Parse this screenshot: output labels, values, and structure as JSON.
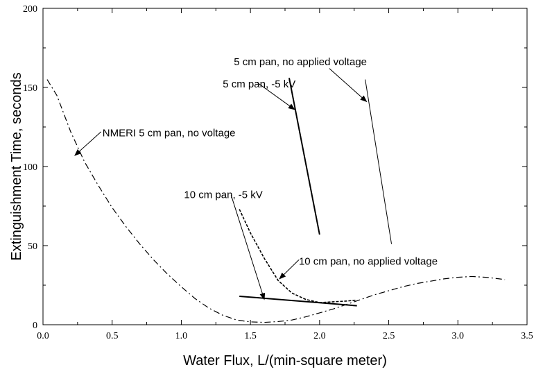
{
  "chart_data": {
    "type": "line",
    "title": "",
    "xlabel": "Water Flux,  L/(min-square meter)",
    "ylabel": "Extinguishment Time, seconds",
    "xlim": [
      0,
      3.5
    ],
    "ylim": [
      0,
      200
    ],
    "x_ticks": [
      "0.0",
      "0.5",
      "1.0",
      "1.5",
      "2.0",
      "2.5",
      "3.0",
      "3.5"
    ],
    "y_ticks": [
      "0",
      "50",
      "100",
      "150",
      "200"
    ],
    "grid": false,
    "series": [
      {
        "style": "dashdot",
        "color": "#000000",
        "x": [
          0.03,
          0.1,
          0.2,
          0.3,
          0.4,
          0.5,
          0.6,
          0.7,
          0.8,
          0.9,
          1.0,
          1.1,
          1.2,
          1.3,
          1.4,
          1.5,
          1.6,
          1.7,
          1.8,
          1.9,
          2.0,
          2.1,
          2.2,
          2.3,
          2.4,
          2.5,
          2.6,
          2.7,
          2.8,
          2.9,
          3.0,
          3.1,
          3.2,
          3.3,
          3.34
        ],
        "y": [
          155,
          145,
          122,
          103,
          88,
          74,
          62,
          51,
          41,
          32,
          24,
          16.5,
          10.5,
          6,
          3,
          1.8,
          1.5,
          2,
          3,
          5,
          7.5,
          10,
          13,
          16,
          19,
          21.5,
          24,
          26,
          27.5,
          29,
          30,
          30.5,
          30,
          29,
          28.5
        ]
      },
      {
        "style": "solid-thick",
        "color": "#000000",
        "x": [
          1.78,
          2.0
        ],
        "y": [
          156,
          57
        ]
      },
      {
        "style": "solid-thin",
        "color": "#000000",
        "x": [
          2.33,
          2.52
        ],
        "y": [
          155,
          51
        ]
      },
      {
        "style": "solid-thick",
        "color": "#000000",
        "x": [
          1.42,
          2.27
        ],
        "y": [
          18,
          12
        ]
      },
      {
        "style": "dashed",
        "color": "#000000",
        "x": [
          1.42,
          1.5,
          1.6,
          1.7,
          1.8,
          1.9,
          2.0,
          2.1,
          2.2,
          2.26
        ],
        "y": [
          73,
          58,
          42,
          28,
          20,
          16,
          14,
          14.5,
          15,
          15.5
        ]
      }
    ],
    "annotations": [
      {
        "text": "5 cm pan, no applied voltage",
        "label_x": 1.38,
        "label_y": 164,
        "arrow_from": [
          2.07,
          162
        ],
        "arrow_to": [
          2.34,
          141
        ]
      },
      {
        "text": "5 cm pan, -5 kV",
        "label_x": 1.3,
        "label_y": 150,
        "arrow_from": [
          1.55,
          153
        ],
        "arrow_to": [
          1.82,
          136
        ]
      },
      {
        "text": "NMERI 5 cm pan, no voltage",
        "label_x": 0.43,
        "label_y": 119,
        "arrow_from": [
          0.42,
          122
        ],
        "arrow_to": [
          0.23,
          107
        ]
      },
      {
        "text": "10 cm pan, -5 kV",
        "label_x": 1.02,
        "label_y": 80,
        "arrow_from": [
          1.36,
          82
        ],
        "arrow_to": [
          1.6,
          16
        ]
      },
      {
        "text": "10 cm pan, no applied voltage",
        "label_x": 1.85,
        "label_y": 38,
        "arrow_from": [
          1.85,
          41
        ],
        "arrow_to": [
          1.71,
          29
        ]
      }
    ]
  }
}
